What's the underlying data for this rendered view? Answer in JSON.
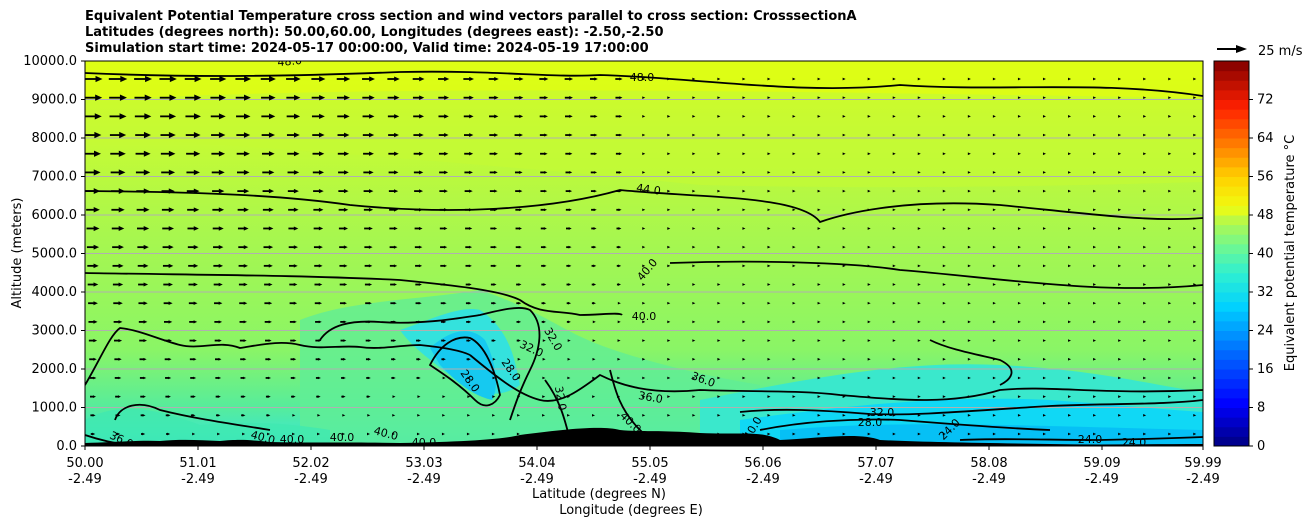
{
  "chart_data": {
    "type": "heatmap",
    "title_lines": [
      "Equivalent Potential Temperature cross section and wind vectors parallel to cross section: CrosssectionA",
      "Latitudes (degrees north): 50.00,60.00, Longitudes (degrees east): -2.50,-2.50",
      "Simulation start time: 2024-05-17 00:00:00, Valid time: 2024-05-19 17:00:00"
    ],
    "ylabel": "Altitude (meters)",
    "xlabel_lat": "Latitude (degrees N)",
    "xlabel_lon": "Longitude (degrees E)",
    "ylim": [
      0,
      10000
    ],
    "y_ticks": [
      "0.0",
      "1000.0",
      "2000.0",
      "3000.0",
      "4000.0",
      "5000.0",
      "6000.0",
      "7000.0",
      "8000.0",
      "9000.0",
      "10000.0"
    ],
    "x_lat_ticks": [
      "50.00",
      "51.01",
      "52.02",
      "53.03",
      "54.04",
      "55.05",
      "56.06",
      "57.07",
      "58.08",
      "59.09",
      "59.99"
    ],
    "x_lon_ticks": [
      "-2.49",
      "-2.49",
      "-2.49",
      "-2.49",
      "-2.49",
      "-2.49",
      "-2.49",
      "-2.49",
      "-2.49",
      "-2.49",
      "-2.49"
    ],
    "colorbar": {
      "label": "Equivalent potential temperature °C",
      "range": [
        0,
        80
      ],
      "ticks": [
        "0",
        "8",
        "16",
        "24",
        "32",
        "40",
        "48",
        "56",
        "64",
        "72"
      ]
    },
    "quiver_key": "25 m/s",
    "contour_labels": [
      "48.0",
      "48.0",
      "44.0",
      "40.0",
      "40.0",
      "36.0",
      "36.0",
      "36.0",
      "32.0",
      "32.0",
      "32.0",
      "32.0",
      "28.0",
      "28.0",
      "28.0",
      "24.0",
      "24.0",
      "24.0",
      "40.0",
      "40.0",
      "40.0",
      "40.0",
      "40.0",
      "40.0",
      "40.0",
      "40",
      "40"
    ]
  }
}
